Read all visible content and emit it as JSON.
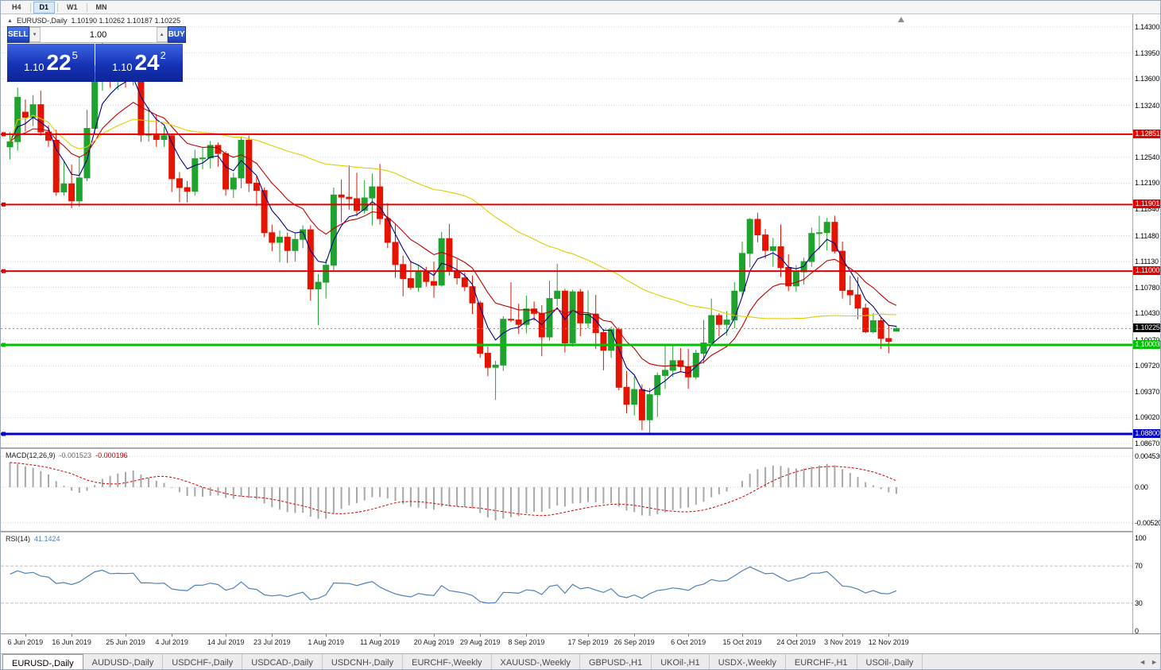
{
  "toolbar": {
    "timeframes": [
      {
        "label": "H4",
        "active": false
      },
      {
        "label": "D1",
        "active": true
      },
      {
        "label": "W1",
        "active": false
      },
      {
        "label": "MN",
        "active": false
      }
    ]
  },
  "chart_header": {
    "collapse_icon": "▲",
    "symbol": "EURUSD-,Daily",
    "ohlc": "1.10190 1.10262 1.10187 1.10225"
  },
  "trade_panel": {
    "sell_label": "SELL",
    "buy_label": "BUY",
    "volume": "1.00",
    "vol_down_icon": "▼",
    "vol_up_icon": "▲",
    "sell_price": {
      "prefix": "1.10",
      "big": "22",
      "sup": "5"
    },
    "buy_price": {
      "prefix": "1.10",
      "big": "24",
      "sup": "2"
    }
  },
  "chart_data": {
    "type": "candlestick",
    "symbol": "EURUSD",
    "timeframe": "Daily",
    "ylim": [
      1.08617,
      1.14472
    ],
    "x_start": 11.5,
    "x_step": 9.7,
    "candle_width": 7,
    "up_color": "#1fa32e",
    "down_color": "#e41400",
    "grid_color": "#d2d2d2",
    "gridlines": [
      {
        "p": 1.143,
        "label": "1.14300"
      },
      {
        "p": 1.1395,
        "label": "1.13950"
      },
      {
        "p": 1.136,
        "label": "1.13600"
      },
      {
        "p": 1.1324,
        "label": "1.13240"
      },
      {
        "p": 1.1289,
        "label": ""
      },
      {
        "p": 1.1254,
        "label": "1.12540"
      },
      {
        "p": 1.1219,
        "label": "1.12190"
      },
      {
        "p": 1.1184,
        "label": "1.11840"
      },
      {
        "p": 1.1148,
        "label": "1.11480"
      },
      {
        "p": 1.1113,
        "label": "1.11130"
      },
      {
        "p": 1.1078,
        "label": "1.10780"
      },
      {
        "p": 1.1043,
        "label": "1.10430"
      },
      {
        "p": 1.1007,
        "label": "1.10070"
      },
      {
        "p": 1.0972,
        "label": "1.09720"
      },
      {
        "p": 1.0937,
        "label": "1.09370"
      },
      {
        "p": 1.0902,
        "label": "1.09020"
      },
      {
        "p": 1.0867,
        "label": "1.08670"
      }
    ],
    "hlines": [
      {
        "p": 1.12851,
        "label": "1.12851",
        "color": "#e00000",
        "w": 2
      },
      {
        "p": 1.11901,
        "label": "1.11901",
        "color": "#e00000",
        "w": 2
      },
      {
        "p": 1.11,
        "label": "1.11000",
        "color": "#e00000",
        "w": 2
      },
      {
        "p": 1.10003,
        "label": "1.10003",
        "color": "#00c000",
        "w": 3
      },
      {
        "p": 1.088,
        "label": "1.08800",
        "color": "#0000c8",
        "w": 3
      }
    ],
    "current_price": {
      "p": 1.10225,
      "label": "1.10225",
      "color": "#000000"
    },
    "moving_averages": [
      {
        "type": "ema",
        "period": 5,
        "color": "#00008b"
      },
      {
        "type": "ema",
        "period": 13,
        "color": "#c00000"
      },
      {
        "type": "sma",
        "period": 50,
        "color": "#e3cc00"
      }
    ],
    "indicator_seeds": {
      "macd_ema12": 1.1332,
      "macd_ema26": 1.1288,
      "rsi_avg_gain": 0.003,
      "rsi_avg_loss": 0.0019
    },
    "candles": [
      [
        1.1268,
        1.1288,
        1.1251,
        1.1275
      ],
      [
        1.1275,
        1.1348,
        1.1263,
        1.1335
      ],
      [
        1.1315,
        1.1332,
        1.1289,
        1.1308
      ],
      [
        1.1308,
        1.1338,
        1.1296,
        1.1325
      ],
      [
        1.1325,
        1.1344,
        1.1283,
        1.1288
      ],
      [
        1.1288,
        1.1297,
        1.1268,
        1.1277
      ],
      [
        1.1277,
        1.1291,
        1.1202,
        1.1207
      ],
      [
        1.1207,
        1.1248,
        1.1202,
        1.1218
      ],
      [
        1.1218,
        1.1244,
        1.1185,
        1.1195
      ],
      [
        1.1195,
        1.1255,
        1.1187,
        1.1226
      ],
      [
        1.1226,
        1.1318,
        1.1222,
        1.1293
      ],
      [
        1.1293,
        1.1378,
        1.1285,
        1.1369
      ],
      [
        1.1369,
        1.1412,
        1.1344,
        1.1399
      ],
      [
        1.1399,
        1.1405,
        1.1348,
        1.1365
      ],
      [
        1.1365,
        1.1391,
        1.1345,
        1.137
      ],
      [
        1.137,
        1.1391,
        1.1348,
        1.1368
      ],
      [
        1.1368,
        1.1394,
        1.1351,
        1.1373
      ],
      [
        1.1373,
        1.1376,
        1.1275,
        1.1284
      ],
      [
        1.1284,
        1.1322,
        1.1275,
        1.1285
      ],
      [
        1.1285,
        1.1312,
        1.1268,
        1.1278
      ],
      [
        1.1278,
        1.1295,
        1.1268,
        1.1283
      ],
      [
        1.1283,
        1.1286,
        1.1207,
        1.1225
      ],
      [
        1.1225,
        1.1234,
        1.1193,
        1.1213
      ],
      [
        1.1213,
        1.1222,
        1.1193,
        1.1208
      ],
      [
        1.1208,
        1.1264,
        1.1202,
        1.1252
      ],
      [
        1.1252,
        1.1267,
        1.1238,
        1.1253
      ],
      [
        1.1253,
        1.1276,
        1.1239,
        1.127
      ],
      [
        1.127,
        1.1274,
        1.1241,
        1.1259
      ],
      [
        1.1259,
        1.1262,
        1.1202,
        1.1211
      ],
      [
        1.1211,
        1.1233,
        1.1199,
        1.1226
      ],
      [
        1.1226,
        1.1282,
        1.1212,
        1.1277
      ],
      [
        1.1277,
        1.1283,
        1.1207,
        1.1219
      ],
      [
        1.1219,
        1.1228,
        1.1188,
        1.1209
      ],
      [
        1.1209,
        1.1213,
        1.1146,
        1.1152
      ],
      [
        1.1152,
        1.1163,
        1.1127,
        1.1139
      ],
      [
        1.1139,
        1.1155,
        1.1112,
        1.1146
      ],
      [
        1.1146,
        1.1152,
        1.1111,
        1.1128
      ],
      [
        1.1128,
        1.1152,
        1.1113,
        1.1143
      ],
      [
        1.1143,
        1.1162,
        1.1131,
        1.1156
      ],
      [
        1.1156,
        1.1162,
        1.106,
        1.1076
      ],
      [
        1.1076,
        1.1096,
        1.1027,
        1.1085
      ],
      [
        1.1085,
        1.1116,
        1.1063,
        1.1108
      ],
      [
        1.1108,
        1.1213,
        1.1101,
        1.1203
      ],
      [
        1.1203,
        1.1224,
        1.1166,
        1.12
      ],
      [
        1.12,
        1.1243,
        1.1183,
        1.1198
      ],
      [
        1.1198,
        1.1233,
        1.1174,
        1.1182
      ],
      [
        1.1182,
        1.1223,
        1.1178,
        1.1199
      ],
      [
        1.1199,
        1.1232,
        1.1162,
        1.1214
      ],
      [
        1.1214,
        1.1245,
        1.1163,
        1.1171
      ],
      [
        1.1171,
        1.1192,
        1.1131,
        1.1139
      ],
      [
        1.1139,
        1.1163,
        1.1091,
        1.1109
      ],
      [
        1.1109,
        1.1121,
        1.1066,
        1.109
      ],
      [
        1.109,
        1.1114,
        1.1075,
        1.1078
      ],
      [
        1.1078,
        1.1108,
        1.1072,
        1.1099
      ],
      [
        1.1099,
        1.1106,
        1.1079,
        1.1086
      ],
      [
        1.1086,
        1.1113,
        1.1064,
        1.1081
      ],
      [
        1.1081,
        1.1153,
        1.1079,
        1.1144
      ],
      [
        1.1144,
        1.1164,
        1.1094,
        1.1101
      ],
      [
        1.1101,
        1.1116,
        1.1082,
        1.1091
      ],
      [
        1.1091,
        1.1098,
        1.1073,
        1.1079
      ],
      [
        1.1079,
        1.1094,
        1.1042,
        1.1057
      ],
      [
        1.1057,
        1.106,
        1.0983,
        1.0989
      ],
      [
        1.0989,
        1.0998,
        1.0958,
        1.097
      ],
      [
        1.097,
        1.0979,
        1.0926,
        1.0973
      ],
      [
        1.0973,
        1.1039,
        1.0965,
        1.1035
      ],
      [
        1.1035,
        1.1085,
        1.1031,
        1.1034
      ],
      [
        1.1034,
        1.1056,
        1.1015,
        1.1028
      ],
      [
        1.1028,
        1.1067,
        1.1016,
        1.1049
      ],
      [
        1.1049,
        1.1059,
        1.1033,
        1.1043
      ],
      [
        1.1043,
        1.1054,
        1.0985,
        1.1011
      ],
      [
        1.1011,
        1.1087,
        1.1006,
        1.1063
      ],
      [
        1.1063,
        1.111,
        1.1053,
        1.1073
      ],
      [
        1.1073,
        1.1076,
        1.099,
        1.1003
      ],
      [
        1.1003,
        1.1075,
        1.0998,
        1.1072
      ],
      [
        1.1072,
        1.1076,
        1.1012,
        1.103
      ],
      [
        1.103,
        1.1074,
        1.1023,
        1.1042
      ],
      [
        1.1042,
        1.1068,
        1.0995,
        1.1017
      ],
      [
        1.1017,
        1.1022,
        1.0966,
        1.0993
      ],
      [
        1.0993,
        1.1025,
        1.0983,
        1.1021
      ],
      [
        1.1021,
        1.1024,
        1.0939,
        1.0943
      ],
      [
        1.0943,
        1.0965,
        1.0908,
        1.092
      ],
      [
        1.092,
        1.0958,
        1.0905,
        1.094
      ],
      [
        1.094,
        1.0947,
        1.0885,
        1.0899
      ],
      [
        1.0899,
        1.0942,
        1.0879,
        1.0933
      ],
      [
        1.0933,
        1.0963,
        1.0903,
        1.0959
      ],
      [
        1.0959,
        1.0999,
        1.0941,
        1.0966
      ],
      [
        1.0966,
        1.0999,
        1.0957,
        1.0979
      ],
      [
        1.0979,
        1.0996,
        1.0963,
        1.0971
      ],
      [
        1.0971,
        1.0995,
        1.0941,
        1.0957
      ],
      [
        1.0957,
        1.0994,
        1.0954,
        1.0989
      ],
      [
        1.0989,
        1.1034,
        1.0975,
        1.1003
      ],
      [
        1.1003,
        1.1063,
        1.1001,
        1.104
      ],
      [
        1.104,
        1.1043,
        1.1012,
        1.1028
      ],
      [
        1.1028,
        1.1046,
        1.1013,
        1.1034
      ],
      [
        1.1034,
        1.1085,
        1.1023,
        1.1073
      ],
      [
        1.1073,
        1.114,
        1.1066,
        1.1124
      ],
      [
        1.1124,
        1.1172,
        1.1105,
        1.117
      ],
      [
        1.117,
        1.1179,
        1.1139,
        1.1149
      ],
      [
        1.1149,
        1.1157,
        1.1117,
        1.1128
      ],
      [
        1.1128,
        1.1145,
        1.1106,
        1.1133
      ],
      [
        1.1133,
        1.1163,
        1.1092,
        1.1105
      ],
      [
        1.1105,
        1.1123,
        1.1073,
        1.108
      ],
      [
        1.108,
        1.1108,
        1.1072,
        1.1099
      ],
      [
        1.1099,
        1.1118,
        1.1082,
        1.1113
      ],
      [
        1.1113,
        1.1159,
        1.1106,
        1.1151
      ],
      [
        1.1151,
        1.1175,
        1.1129,
        1.1152
      ],
      [
        1.1152,
        1.1172,
        1.1128,
        1.1166
      ],
      [
        1.1166,
        1.1175,
        1.1124,
        1.1127
      ],
      [
        1.1127,
        1.114,
        1.1063,
        1.1074
      ],
      [
        1.1074,
        1.1094,
        1.1054,
        1.1068
      ],
      [
        1.1068,
        1.1092,
        1.1035,
        1.105
      ],
      [
        1.105,
        1.1056,
        1.1016,
        1.1018
      ],
      [
        1.1018,
        1.1043,
        1.1016,
        1.1033
      ],
      [
        1.1033,
        1.1037,
        1.0995,
        1.1009
      ],
      [
        1.1009,
        1.1027,
        1.0989,
        1.1005
      ],
      [
        1.1019,
        1.10262,
        1.10187,
        1.10225
      ]
    ],
    "macd": {
      "name": "MACD(12,26,9)",
      "value_main": "-0.001523",
      "value_signal": "-0.000196",
      "fast": 12,
      "slow": 26,
      "signal": 9,
      "axis": [
        {
          "v": 0.004536,
          "label": "0.004536"
        },
        {
          "v": 0,
          "label": "0.00"
        },
        {
          "v": -0.005205,
          "label": "-0.005205"
        }
      ],
      "ylim": [
        -0.006395,
        0.005581
      ],
      "bar_color": "#a8a8a8",
      "signal_color": "#d40000"
    },
    "rsi": {
      "name": "RSI(14)",
      "value": "41.1424",
      "period": 14,
      "axis": [
        {
          "v": 100,
          "label": "100"
        },
        {
          "v": 70,
          "label": "70"
        },
        {
          "v": 30,
          "label": "30"
        },
        {
          "v": 0,
          "label": "0"
        }
      ],
      "levels": [
        70,
        30
      ],
      "ylim": [
        -2.56,
        106
      ],
      "color": "#4f81bd"
    },
    "date_labels": [
      {
        "i": 2,
        "label": "6 Jun 2019"
      },
      {
        "i": 8,
        "label": "16 Jun 2019"
      },
      {
        "i": 15,
        "label": "25 Jun 2019"
      },
      {
        "i": 21,
        "label": "4 Jul 2019"
      },
      {
        "i": 28,
        "label": "14 Jul 2019"
      },
      {
        "i": 34,
        "label": "23 Jul 2019"
      },
      {
        "i": 41,
        "label": "1 Aug 2019"
      },
      {
        "i": 48,
        "label": "11 Aug 2019"
      },
      {
        "i": 55,
        "label": "20 Aug 2019"
      },
      {
        "i": 61,
        "label": "29 Aug 2019"
      },
      {
        "i": 67,
        "label": "8 Sep 2019"
      },
      {
        "i": 75,
        "label": "17 Sep 2019"
      },
      {
        "i": 81,
        "label": "26 Sep 2019"
      },
      {
        "i": 88,
        "label": "6 Oct 2019"
      },
      {
        "i": 95,
        "label": "15 Oct 2019"
      },
      {
        "i": 102,
        "label": "24 Oct 2019"
      },
      {
        "i": 108,
        "label": "3 Nov 2019"
      },
      {
        "i": 114,
        "label": "12 Nov 2019"
      }
    ]
  },
  "tabs": {
    "items": [
      {
        "label": "EURUSD-,Daily",
        "active": true
      },
      {
        "label": "AUDUSD-,Daily",
        "active": false
      },
      {
        "label": "USDCHF-,Daily",
        "active": false
      },
      {
        "label": "USDCAD-,Daily",
        "active": false
      },
      {
        "label": "USDCNH-,Daily",
        "active": false
      },
      {
        "label": "EURCHF-,Weekly",
        "active": false
      },
      {
        "label": "XAUUSD-,Weekly",
        "active": false
      },
      {
        "label": "GBPUSD-,H1",
        "active": false
      },
      {
        "label": "UKOil-,H1",
        "active": false
      },
      {
        "label": "USDX-,Weekly",
        "active": false
      },
      {
        "label": "EURCHF-,H1",
        "active": false
      },
      {
        "label": "USOil-,Daily",
        "active": false
      }
    ],
    "scroll_left_icon": "◄",
    "scroll_right_icon": "►"
  }
}
